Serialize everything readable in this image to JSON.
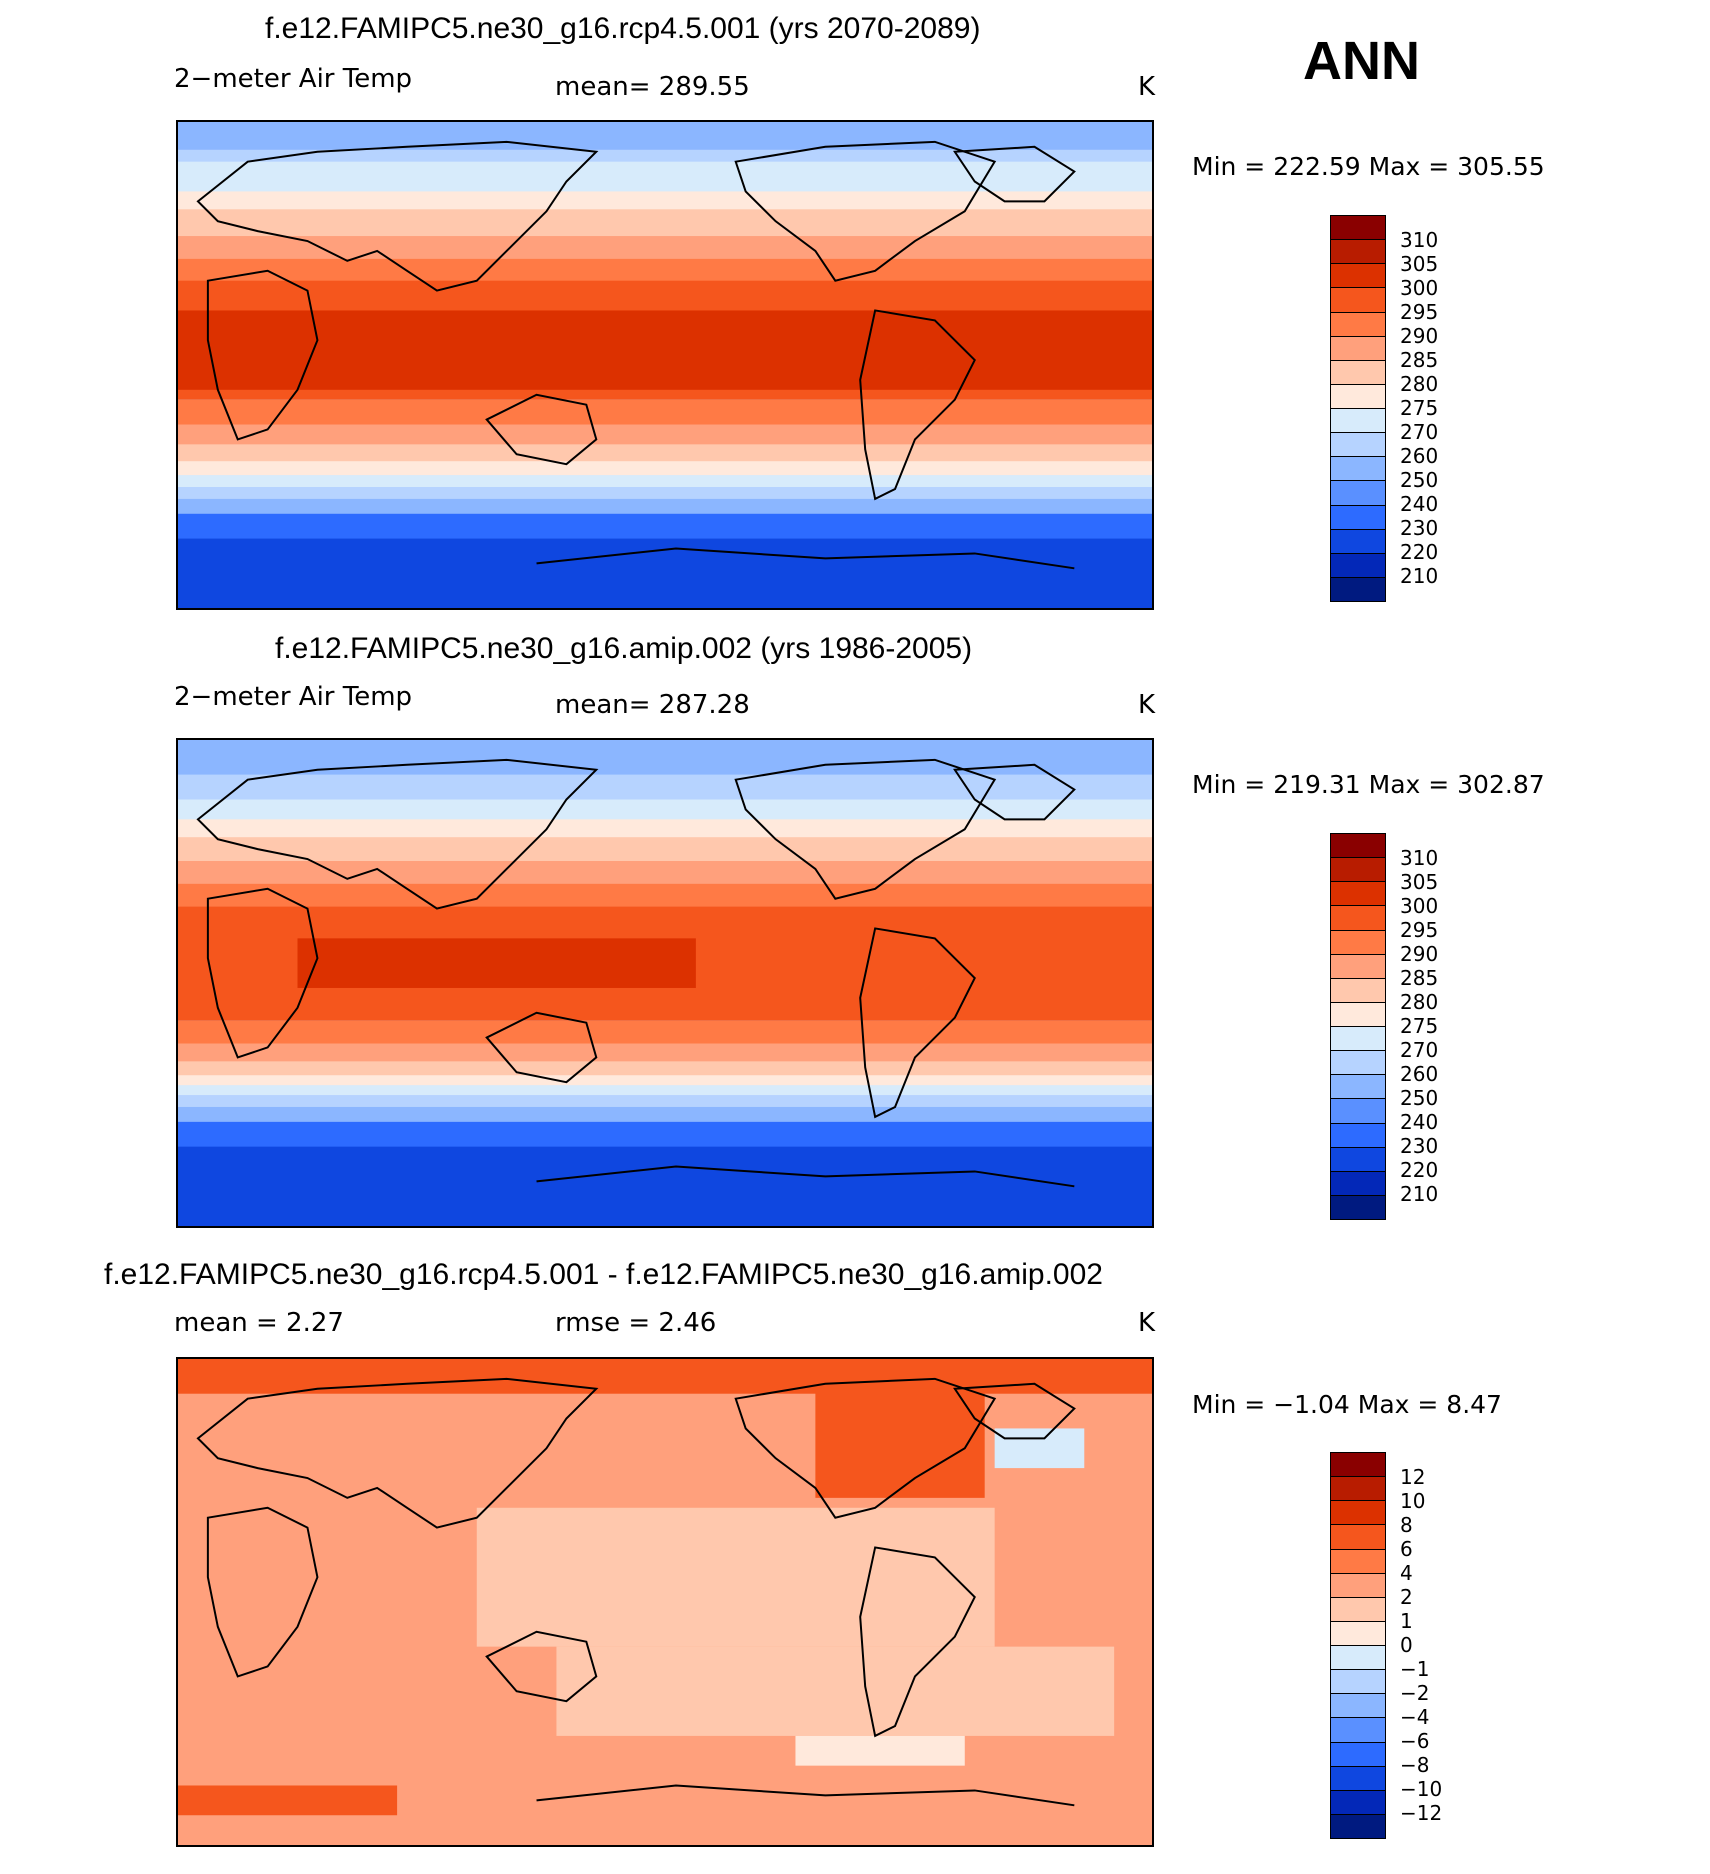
{
  "season": "ANN",
  "panels": [
    {
      "title": "f.e12.FAMIPC5.ne30_g16.rcp4.5.001 (yrs 2070-2089)",
      "variable": "2−meter Air Temp",
      "stat_text": "mean=  289.55",
      "units": "K",
      "minmax": "Min  =  222.59  Max  =  305.55",
      "colorbar": {
        "levels": [
          "310",
          "305",
          "300",
          "295",
          "290",
          "285",
          "280",
          "275",
          "270",
          "260",
          "250",
          "240",
          "230",
          "220",
          "210"
        ],
        "colors": [
          "#8a0000",
          "#b81c00",
          "#dc3100",
          "#f5561d",
          "#ff7a45",
          "#ffa07c",
          "#ffc8ad",
          "#ffe9dc",
          "#d7ebfb",
          "#b6d3ff",
          "#8bb6ff",
          "#5a90ff",
          "#2d6bff",
          "#0f47e0",
          "#0328b8",
          "#001a80"
        ]
      }
    },
    {
      "title": "f.e12.FAMIPC5.ne30_g16.amip.002 (yrs 1986-2005)",
      "variable": "2−meter Air Temp",
      "stat_text": "mean=  287.28",
      "units": "K",
      "minmax": "Min  =  219.31  Max  =  302.87",
      "colorbar": {
        "levels": [
          "310",
          "305",
          "300",
          "295",
          "290",
          "285",
          "280",
          "275",
          "270",
          "260",
          "250",
          "240",
          "230",
          "220",
          "210"
        ],
        "colors": [
          "#8a0000",
          "#b81c00",
          "#dc3100",
          "#f5561d",
          "#ff7a45",
          "#ffa07c",
          "#ffc8ad",
          "#ffe9dc",
          "#d7ebfb",
          "#b6d3ff",
          "#8bb6ff",
          "#5a90ff",
          "#2d6bff",
          "#0f47e0",
          "#0328b8",
          "#001a80"
        ]
      }
    },
    {
      "title": "f.e12.FAMIPC5.ne30_g16.rcp4.5.001 - f.e12.FAMIPC5.ne30_g16.amip.002",
      "mean_text": "mean =     2.27",
      "rmse_text": "rmse =     2.46",
      "units": "K",
      "minmax": "Min  =    −1.04  Max  =     8.47",
      "colorbar": {
        "levels": [
          "12",
          "10",
          "8",
          "6",
          "4",
          "2",
          "1",
          "0",
          "−1",
          "−2",
          "−4",
          "−6",
          "−8",
          "−10",
          "−12"
        ],
        "colors": [
          "#8a0000",
          "#b81c00",
          "#dc3100",
          "#f5561d",
          "#ff7a45",
          "#ffa07c",
          "#ffc8ad",
          "#ffe9dc",
          "#d7ebfb",
          "#b6d3ff",
          "#8bb6ff",
          "#5a90ff",
          "#2d6bff",
          "#0f47e0",
          "#0328b8",
          "#001a80"
        ]
      }
    }
  ],
  "colors": {
    "tropics": "#dc3100",
    "subtropics": "#f5561d",
    "warm_mid": "#ff7a45",
    "mid": "#ffa07c",
    "cool_mid": "#ffc8ad",
    "near_freezing": "#ffe9dc",
    "cold1": "#d7ebfb",
    "cold2": "#b6d3ff",
    "cold3": "#8bb6ff",
    "antarctic1": "#2d6bff",
    "antarctic2": "#0f47e0",
    "diff_bg": "#ffa07c",
    "diff_low": "#ffc8ad",
    "diff_high": "#f5561d"
  }
}
